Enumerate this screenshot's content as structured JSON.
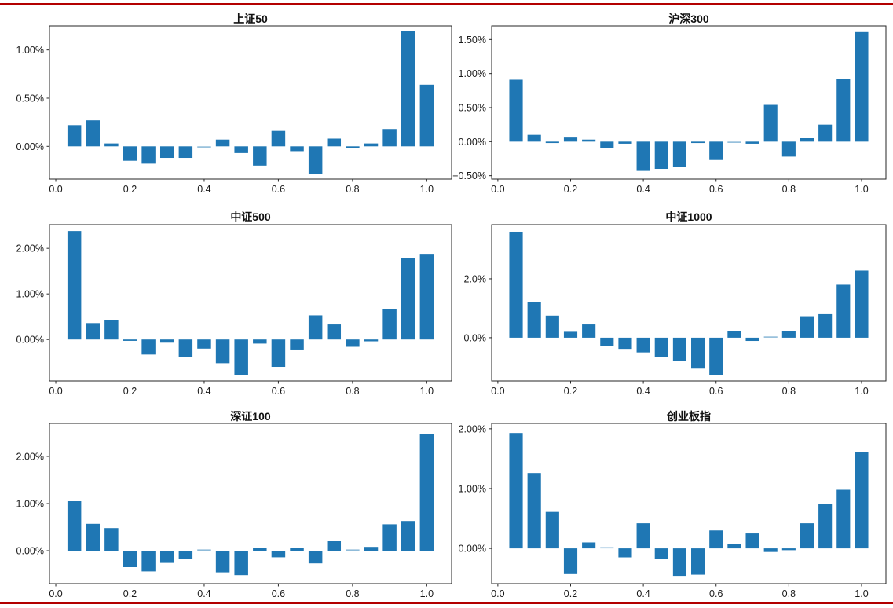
{
  "page": {
    "background": "#ffffff",
    "top_rule_color": "#b30000",
    "bottom_rule_color": "#b30000",
    "bar_color": "#1f77b4",
    "axis_color": "#262626"
  },
  "chart_data": [
    {
      "type": "bar",
      "title": "上证50",
      "x": [
        0.05,
        0.1,
        0.15,
        0.2,
        0.25,
        0.3,
        0.35,
        0.4,
        0.45,
        0.5,
        0.55,
        0.6,
        0.65,
        0.7,
        0.75,
        0.8,
        0.85,
        0.9,
        0.95,
        1.0
      ],
      "values": [
        0.22,
        0.27,
        0.03,
        -0.15,
        -0.18,
        -0.12,
        -0.12,
        -0.01,
        0.07,
        -0.07,
        -0.2,
        0.16,
        -0.05,
        -0.29,
        0.08,
        -0.02,
        0.03,
        0.18,
        1.2,
        0.64
      ],
      "xlabel": "",
      "ylabel": "",
      "xlim": [
        -0.017,
        1.067
      ],
      "ylim": [
        -0.34,
        1.25
      ],
      "xtick_labels": [
        "0.0",
        "0.2",
        "0.4",
        "0.6",
        "0.8",
        "1.0"
      ],
      "xtick_values": [
        0,
        0.2,
        0.4,
        0.6,
        0.8,
        1.0
      ],
      "ytick_labels": [
        "0.00%",
        "0.50%",
        "1.00%"
      ],
      "ytick_values": [
        0,
        0.5,
        1.0
      ],
      "bar_color": "#1f77b4",
      "bar_width": 0.037,
      "grid": false,
      "legend": null
    },
    {
      "type": "bar",
      "title": "沪深300",
      "x": [
        0.05,
        0.1,
        0.15,
        0.2,
        0.25,
        0.3,
        0.35,
        0.4,
        0.45,
        0.5,
        0.55,
        0.6,
        0.65,
        0.7,
        0.75,
        0.8,
        0.85,
        0.9,
        0.95,
        1.0
      ],
      "values": [
        0.91,
        0.1,
        -0.02,
        0.06,
        0.03,
        -0.1,
        -0.03,
        -0.43,
        -0.4,
        -0.37,
        -0.02,
        -0.27,
        -0.01,
        -0.03,
        0.54,
        -0.22,
        0.05,
        0.25,
        0.92,
        1.61
      ],
      "xlabel": "",
      "ylabel": "",
      "xlim": [
        -0.017,
        1.067
      ],
      "ylim": [
        -0.55,
        1.7
      ],
      "xtick_labels": [
        "0.0",
        "0.2",
        "0.4",
        "0.6",
        "0.8",
        "1.0"
      ],
      "xtick_values": [
        0,
        0.2,
        0.4,
        0.6,
        0.8,
        1.0
      ],
      "ytick_labels": [
        "−0.50%",
        "0.00%",
        "0.50%",
        "1.00%",
        "1.50%"
      ],
      "ytick_values": [
        -0.5,
        0,
        0.5,
        1.0,
        1.5
      ],
      "bar_color": "#1f77b4",
      "bar_width": 0.037,
      "grid": false,
      "legend": null
    },
    {
      "type": "bar",
      "title": "中证500",
      "x": [
        0.05,
        0.1,
        0.15,
        0.2,
        0.25,
        0.3,
        0.35,
        0.4,
        0.45,
        0.5,
        0.55,
        0.6,
        0.65,
        0.7,
        0.75,
        0.8,
        0.85,
        0.9,
        0.95,
        1.0
      ],
      "values": [
        2.38,
        0.36,
        0.43,
        -0.03,
        -0.33,
        -0.07,
        -0.38,
        -0.2,
        -0.52,
        -0.78,
        -0.09,
        -0.6,
        -0.22,
        0.53,
        0.33,
        -0.16,
        -0.04,
        0.66,
        1.79,
        1.88
      ],
      "xlabel": "",
      "ylabel": "",
      "xlim": [
        -0.017,
        1.067
      ],
      "ylim": [
        -0.91,
        2.52
      ],
      "xtick_labels": [
        "0.0",
        "0.2",
        "0.4",
        "0.6",
        "0.8",
        "1.0"
      ],
      "xtick_values": [
        0,
        0.2,
        0.4,
        0.6,
        0.8,
        1.0
      ],
      "ytick_labels": [
        "0.00%",
        "1.00%",
        "2.00%"
      ],
      "ytick_values": [
        0,
        1.0,
        2.0
      ],
      "bar_color": "#1f77b4",
      "bar_width": 0.037,
      "grid": false,
      "legend": null
    },
    {
      "type": "bar",
      "title": "中证1000",
      "x": [
        0.05,
        0.1,
        0.15,
        0.2,
        0.25,
        0.3,
        0.35,
        0.4,
        0.45,
        0.5,
        0.55,
        0.6,
        0.65,
        0.7,
        0.75,
        0.8,
        0.85,
        0.9,
        0.95,
        1.0
      ],
      "values": [
        3.6,
        1.2,
        0.75,
        0.2,
        0.45,
        -0.28,
        -0.38,
        -0.5,
        -0.66,
        -0.8,
        -1.05,
        -1.28,
        0.22,
        -0.11,
        0.02,
        0.23,
        0.73,
        0.8,
        1.8,
        2.28
      ],
      "xlabel": "",
      "ylabel": "",
      "xlim": [
        -0.017,
        1.067
      ],
      "ylim": [
        -1.47,
        3.84
      ],
      "xtick_labels": [
        "0.0",
        "0.2",
        "0.4",
        "0.6",
        "0.8",
        "1.0"
      ],
      "xtick_values": [
        0,
        0.2,
        0.4,
        0.6,
        0.8,
        1.0
      ],
      "ytick_labels": [
        "0.0%",
        "2.0%"
      ],
      "ytick_values": [
        0,
        2.0
      ],
      "bar_color": "#1f77b4",
      "bar_width": 0.037,
      "grid": false,
      "legend": null
    },
    {
      "type": "bar",
      "title": "深证100",
      "x": [
        0.05,
        0.1,
        0.15,
        0.2,
        0.25,
        0.3,
        0.35,
        0.4,
        0.45,
        0.5,
        0.55,
        0.6,
        0.65,
        0.7,
        0.75,
        0.8,
        0.85,
        0.9,
        0.95,
        1.0
      ],
      "values": [
        1.05,
        0.57,
        0.48,
        -0.35,
        -0.44,
        -0.26,
        -0.17,
        0.01,
        -0.46,
        -0.52,
        0.06,
        -0.14,
        0.05,
        -0.27,
        0.2,
        0.01,
        0.08,
        0.56,
        0.63,
        2.47
      ],
      "xlabel": "",
      "ylabel": "",
      "xlim": [
        -0.017,
        1.067
      ],
      "ylim": [
        -0.7,
        2.7
      ],
      "xtick_labels": [
        "0.0",
        "0.2",
        "0.4",
        "0.6",
        "0.8",
        "1.0"
      ],
      "xtick_values": [
        0,
        0.2,
        0.4,
        0.6,
        0.8,
        1.0
      ],
      "ytick_labels": [
        "0.00%",
        "1.00%",
        "2.00%"
      ],
      "ytick_values": [
        0,
        1.0,
        2.0
      ],
      "bar_color": "#1f77b4",
      "bar_width": 0.037,
      "grid": false,
      "legend": null
    },
    {
      "type": "bar",
      "title": "创业板指",
      "x": [
        0.05,
        0.1,
        0.15,
        0.2,
        0.25,
        0.3,
        0.35,
        0.4,
        0.45,
        0.5,
        0.55,
        0.6,
        0.65,
        0.7,
        0.75,
        0.8,
        0.85,
        0.9,
        0.95,
        1.0
      ],
      "values": [
        1.93,
        1.26,
        0.61,
        -0.43,
        0.1,
        0.02,
        -0.15,
        0.42,
        -0.17,
        -0.46,
        -0.44,
        0.3,
        0.07,
        0.25,
        -0.06,
        -0.03,
        0.42,
        0.75,
        0.98,
        1.61
      ],
      "xlabel": "",
      "ylabel": "",
      "xlim": [
        -0.017,
        1.067
      ],
      "ylim": [
        -0.59,
        2.09
      ],
      "xtick_labels": [
        "0.0",
        "0.2",
        "0.4",
        "0.6",
        "0.8",
        "1.0"
      ],
      "xtick_values": [
        0,
        0.2,
        0.4,
        0.6,
        0.8,
        1.0
      ],
      "ytick_labels": [
        "0.00%",
        "1.00%",
        "2.00%"
      ],
      "ytick_values": [
        0,
        1.0,
        2.0
      ],
      "bar_color": "#1f77b4",
      "bar_width": 0.037,
      "grid": false,
      "legend": null
    }
  ]
}
